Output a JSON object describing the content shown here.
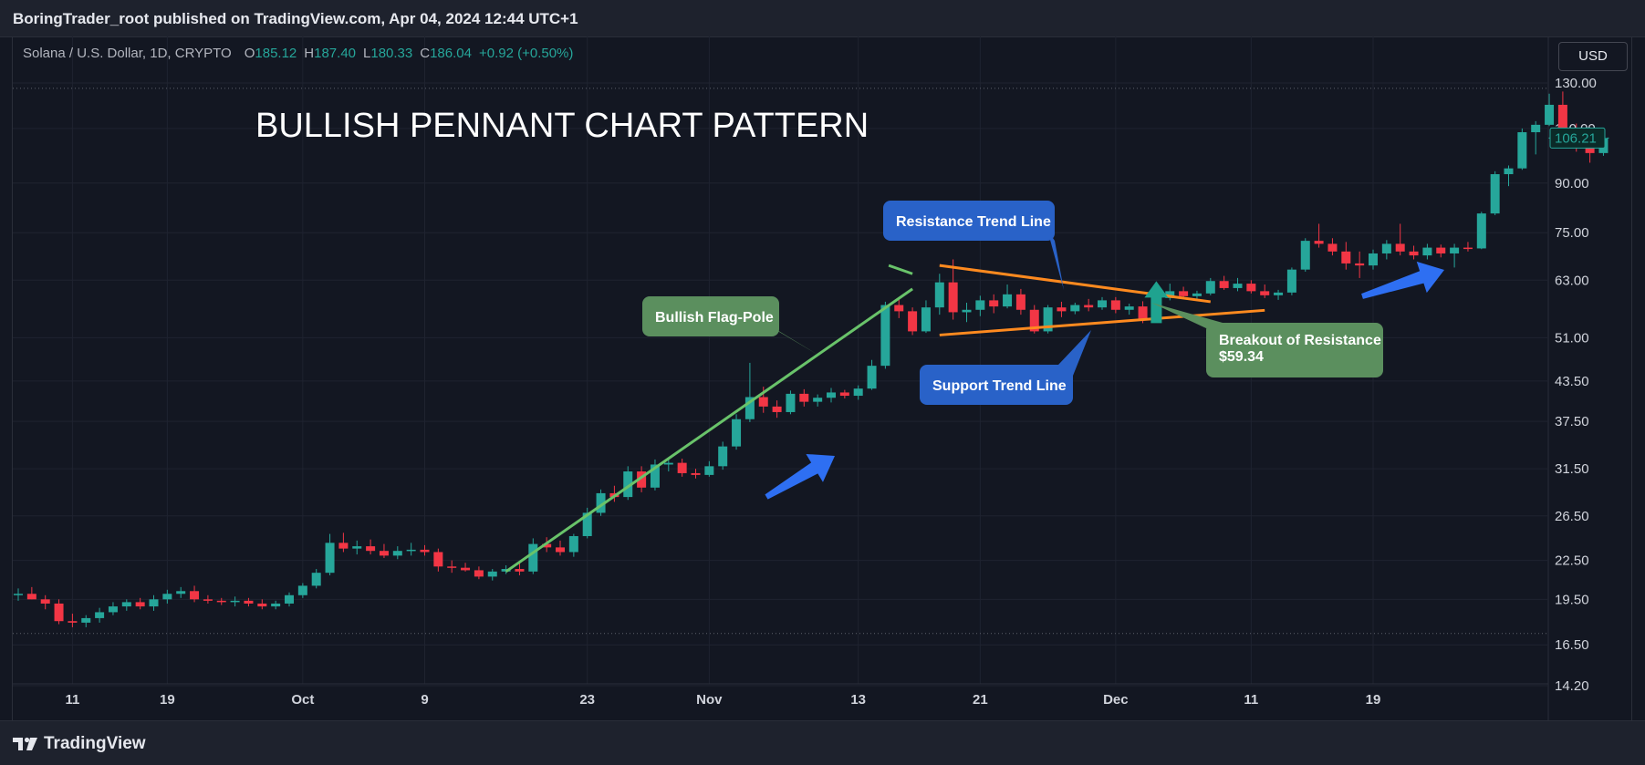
{
  "publish_text": "BoringTrader_root published on TradingView.com, Apr 04, 2024 12:44 UTC+1",
  "brand": "TradingView",
  "legend": {
    "symbol": "Solana / U.S. Dollar, 1D, CRYPTO",
    "o_label": "O",
    "o": "185.12",
    "h_label": "H",
    "h": "187.40",
    "l_label": "L",
    "l": "180.33",
    "c_label": "C",
    "c": "186.04",
    "change": "+0.92 (+0.50%)"
  },
  "currency_button": "USD",
  "colors": {
    "up": "#26a69a",
    "down": "#f23645",
    "background": "#131722"
  },
  "chart_data": {
    "type": "candlestick",
    "title": "BULLISH PENNANT CHART PATTERN",
    "y_scale": "log",
    "ylim": [
      14.2,
      134
    ],
    "y_ticks": [
      "130.00",
      "110.00",
      "90.00",
      "75.00",
      "63.00",
      "51.00",
      "43.50",
      "37.50",
      "31.50",
      "26.50",
      "22.50",
      "19.50",
      "16.50",
      "14.20"
    ],
    "x_ticks": [
      "11",
      "19",
      "Oct",
      "9",
      "23",
      "Nov",
      "13",
      "21",
      "Dec",
      "11",
      "19"
    ],
    "last_price": "106.21",
    "candles": [
      {
        "o": 19.8,
        "h": 20.3,
        "l": 19.4,
        "c": 19.9
      },
      {
        "o": 19.9,
        "h": 20.4,
        "l": 19.5,
        "c": 19.5
      },
      {
        "o": 19.5,
        "h": 19.8,
        "l": 18.8,
        "c": 19.2
      },
      {
        "o": 19.2,
        "h": 19.5,
        "l": 17.8,
        "c": 18.0
      },
      {
        "o": 18.0,
        "h": 18.5,
        "l": 17.6,
        "c": 17.9
      },
      {
        "o": 17.9,
        "h": 18.4,
        "l": 17.6,
        "c": 18.2
      },
      {
        "o": 18.2,
        "h": 18.9,
        "l": 17.9,
        "c": 18.6
      },
      {
        "o": 18.6,
        "h": 19.3,
        "l": 18.4,
        "c": 19.0
      },
      {
        "o": 19.0,
        "h": 19.5,
        "l": 18.7,
        "c": 19.3
      },
      {
        "o": 19.3,
        "h": 19.6,
        "l": 18.8,
        "c": 19.0
      },
      {
        "o": 19.0,
        "h": 19.8,
        "l": 18.7,
        "c": 19.5
      },
      {
        "o": 19.5,
        "h": 20.2,
        "l": 19.2,
        "c": 19.9
      },
      {
        "o": 19.9,
        "h": 20.4,
        "l": 19.6,
        "c": 20.1
      },
      {
        "o": 20.1,
        "h": 20.5,
        "l": 19.3,
        "c": 19.5
      },
      {
        "o": 19.5,
        "h": 19.8,
        "l": 19.2,
        "c": 19.4
      },
      {
        "o": 19.4,
        "h": 19.6,
        "l": 19.1,
        "c": 19.3
      },
      {
        "o": 19.3,
        "h": 19.7,
        "l": 19.0,
        "c": 19.4
      },
      {
        "o": 19.4,
        "h": 19.6,
        "l": 19.0,
        "c": 19.2
      },
      {
        "o": 19.2,
        "h": 19.5,
        "l": 18.8,
        "c": 19.0
      },
      {
        "o": 19.0,
        "h": 19.4,
        "l": 18.8,
        "c": 19.2
      },
      {
        "o": 19.2,
        "h": 20.0,
        "l": 19.0,
        "c": 19.8
      },
      {
        "o": 19.8,
        "h": 20.7,
        "l": 19.6,
        "c": 20.5
      },
      {
        "o": 20.5,
        "h": 21.8,
        "l": 20.3,
        "c": 21.5
      },
      {
        "o": 21.5,
        "h": 24.8,
        "l": 21.3,
        "c": 24.0
      },
      {
        "o": 24.0,
        "h": 24.9,
        "l": 23.2,
        "c": 23.5
      },
      {
        "o": 23.5,
        "h": 24.2,
        "l": 23.0,
        "c": 23.7
      },
      {
        "o": 23.7,
        "h": 24.3,
        "l": 23.0,
        "c": 23.3
      },
      {
        "o": 23.3,
        "h": 23.9,
        "l": 22.7,
        "c": 22.9
      },
      {
        "o": 22.9,
        "h": 23.7,
        "l": 22.6,
        "c": 23.3
      },
      {
        "o": 23.3,
        "h": 24.0,
        "l": 22.9,
        "c": 23.4
      },
      {
        "o": 23.4,
        "h": 23.8,
        "l": 22.9,
        "c": 23.2
      },
      {
        "o": 23.2,
        "h": 23.5,
        "l": 21.6,
        "c": 22.0
      },
      {
        "o": 22.0,
        "h": 22.5,
        "l": 21.5,
        "c": 21.9
      },
      {
        "o": 21.9,
        "h": 22.3,
        "l": 21.6,
        "c": 21.7
      },
      {
        "o": 21.7,
        "h": 22.0,
        "l": 21.0,
        "c": 21.2
      },
      {
        "o": 21.2,
        "h": 21.8,
        "l": 20.9,
        "c": 21.6
      },
      {
        "o": 21.6,
        "h": 22.1,
        "l": 21.4,
        "c": 21.8
      },
      {
        "o": 21.8,
        "h": 22.4,
        "l": 21.3,
        "c": 21.6
      },
      {
        "o": 21.6,
        "h": 24.4,
        "l": 21.4,
        "c": 23.9
      },
      {
        "o": 23.9,
        "h": 24.5,
        "l": 23.2,
        "c": 23.6
      },
      {
        "o": 23.6,
        "h": 24.2,
        "l": 22.9,
        "c": 23.2
      },
      {
        "o": 23.2,
        "h": 24.8,
        "l": 22.8,
        "c": 24.6
      },
      {
        "o": 24.6,
        "h": 27.3,
        "l": 24.4,
        "c": 26.8
      },
      {
        "o": 26.8,
        "h": 29.2,
        "l": 26.5,
        "c": 28.8
      },
      {
        "o": 28.8,
        "h": 29.6,
        "l": 27.9,
        "c": 28.4
      },
      {
        "o": 28.4,
        "h": 31.8,
        "l": 28.1,
        "c": 31.2
      },
      {
        "o": 31.2,
        "h": 31.8,
        "l": 28.9,
        "c": 29.4
      },
      {
        "o": 29.4,
        "h": 32.6,
        "l": 29.1,
        "c": 32.0
      },
      {
        "o": 32.0,
        "h": 32.8,
        "l": 31.2,
        "c": 32.2
      },
      {
        "o": 32.2,
        "h": 32.7,
        "l": 30.6,
        "c": 31.0
      },
      {
        "o": 31.0,
        "h": 31.5,
        "l": 30.4,
        "c": 30.8
      },
      {
        "o": 30.8,
        "h": 32.4,
        "l": 30.6,
        "c": 31.8
      },
      {
        "o": 31.8,
        "h": 34.8,
        "l": 31.4,
        "c": 34.2
      },
      {
        "o": 34.2,
        "h": 38.5,
        "l": 33.8,
        "c": 37.8
      },
      {
        "o": 37.8,
        "h": 46.5,
        "l": 37.4,
        "c": 41.0
      },
      {
        "o": 41.0,
        "h": 42.6,
        "l": 38.7,
        "c": 39.6
      },
      {
        "o": 39.6,
        "h": 40.5,
        "l": 38.0,
        "c": 38.8
      },
      {
        "o": 38.8,
        "h": 42.0,
        "l": 38.5,
        "c": 41.5
      },
      {
        "o": 41.5,
        "h": 42.2,
        "l": 39.6,
        "c": 40.3
      },
      {
        "o": 40.3,
        "h": 41.4,
        "l": 39.6,
        "c": 40.9
      },
      {
        "o": 40.9,
        "h": 42.4,
        "l": 40.2,
        "c": 41.7
      },
      {
        "o": 41.7,
        "h": 42.1,
        "l": 40.8,
        "c": 41.2
      },
      {
        "o": 41.2,
        "h": 42.8,
        "l": 40.6,
        "c": 42.3
      },
      {
        "o": 42.3,
        "h": 47.0,
        "l": 42.1,
        "c": 46.0
      },
      {
        "o": 46.0,
        "h": 58.2,
        "l": 45.5,
        "c": 57.5
      },
      {
        "o": 57.5,
        "h": 59.0,
        "l": 54.8,
        "c": 56.2
      },
      {
        "o": 56.2,
        "h": 57.0,
        "l": 51.5,
        "c": 52.2
      },
      {
        "o": 52.2,
        "h": 58.5,
        "l": 51.9,
        "c": 57.0
      },
      {
        "o": 57.0,
        "h": 64.5,
        "l": 55.5,
        "c": 62.5
      },
      {
        "o": 62.5,
        "h": 68.0,
        "l": 54.5,
        "c": 56.0
      },
      {
        "o": 56.0,
        "h": 58.0,
        "l": 54.0,
        "c": 56.5
      },
      {
        "o": 56.5,
        "h": 59.5,
        "l": 55.2,
        "c": 58.5
      },
      {
        "o": 58.5,
        "h": 59.8,
        "l": 55.8,
        "c": 57.2
      },
      {
        "o": 57.2,
        "h": 62.0,
        "l": 56.8,
        "c": 59.8
      },
      {
        "o": 59.8,
        "h": 61.0,
        "l": 55.5,
        "c": 56.5
      },
      {
        "o": 56.5,
        "h": 57.5,
        "l": 51.8,
        "c": 52.2
      },
      {
        "o": 52.2,
        "h": 57.5,
        "l": 51.8,
        "c": 57.0
      },
      {
        "o": 57.0,
        "h": 58.2,
        "l": 55.0,
        "c": 56.2
      },
      {
        "o": 56.2,
        "h": 58.0,
        "l": 55.6,
        "c": 57.5
      },
      {
        "o": 57.5,
        "h": 58.8,
        "l": 56.2,
        "c": 57.0
      },
      {
        "o": 57.0,
        "h": 59.2,
        "l": 56.5,
        "c": 58.5
      },
      {
        "o": 58.5,
        "h": 59.2,
        "l": 55.8,
        "c": 56.5
      },
      {
        "o": 56.5,
        "h": 57.8,
        "l": 55.5,
        "c": 57.2
      },
      {
        "o": 57.2,
        "h": 58.3,
        "l": 53.8,
        "c": 54.5
      },
      {
        "o": 54.5,
        "h": 59.8,
        "l": 54.0,
        "c": 59.0
      },
      {
        "o": 59.0,
        "h": 62.2,
        "l": 58.5,
        "c": 60.5
      },
      {
        "o": 60.5,
        "h": 61.5,
        "l": 58.8,
        "c": 59.4
      },
      {
        "o": 59.4,
        "h": 60.6,
        "l": 58.8,
        "c": 60.0
      },
      {
        "o": 60.0,
        "h": 63.5,
        "l": 59.6,
        "c": 62.8
      },
      {
        "o": 62.8,
        "h": 64.0,
        "l": 60.8,
        "c": 61.2
      },
      {
        "o": 61.2,
        "h": 63.5,
        "l": 60.5,
        "c": 62.2
      },
      {
        "o": 62.2,
        "h": 63.0,
        "l": 60.0,
        "c": 60.5
      },
      {
        "o": 60.5,
        "h": 62.0,
        "l": 59.0,
        "c": 59.6
      },
      {
        "o": 59.6,
        "h": 60.8,
        "l": 58.6,
        "c": 60.2
      },
      {
        "o": 60.2,
        "h": 66.0,
        "l": 59.6,
        "c": 65.5
      },
      {
        "o": 65.5,
        "h": 73.5,
        "l": 65.0,
        "c": 72.8
      },
      {
        "o": 72.8,
        "h": 77.5,
        "l": 71.0,
        "c": 72.0
      },
      {
        "o": 72.0,
        "h": 73.5,
        "l": 69.0,
        "c": 70.0
      },
      {
        "o": 70.0,
        "h": 72.5,
        "l": 65.5,
        "c": 67.0
      },
      {
        "o": 67.0,
        "h": 70.0,
        "l": 63.5,
        "c": 66.5
      },
      {
        "o": 66.5,
        "h": 70.5,
        "l": 65.5,
        "c": 69.5
      },
      {
        "o": 69.5,
        "h": 73.0,
        "l": 68.0,
        "c": 72.0
      },
      {
        "o": 72.0,
        "h": 77.5,
        "l": 69.0,
        "c": 70.0
      },
      {
        "o": 70.0,
        "h": 71.5,
        "l": 68.0,
        "c": 69.0
      },
      {
        "o": 69.0,
        "h": 72.0,
        "l": 68.0,
        "c": 71.0
      },
      {
        "o": 71.0,
        "h": 71.8,
        "l": 68.5,
        "c": 69.5
      },
      {
        "o": 69.5,
        "h": 72.0,
        "l": 66.0,
        "c": 71.0
      },
      {
        "o": 71.0,
        "h": 72.5,
        "l": 70.0,
        "c": 70.8
      },
      {
        "o": 70.8,
        "h": 81.0,
        "l": 70.6,
        "c": 80.5
      },
      {
        "o": 80.5,
        "h": 94.0,
        "l": 80.0,
        "c": 93.0
      },
      {
        "o": 93.0,
        "h": 96.0,
        "l": 89.0,
        "c": 95.0
      },
      {
        "o": 95.0,
        "h": 110.0,
        "l": 94.5,
        "c": 108.5
      },
      {
        "o": 108.5,
        "h": 113.0,
        "l": 100.0,
        "c": 111.5
      },
      {
        "o": 111.5,
        "h": 125.0,
        "l": 111.0,
        "c": 120.0
      },
      {
        "o": 120.0,
        "h": 126.0,
        "l": 109.0,
        "c": 110.0
      },
      {
        "o": 110.0,
        "h": 112.0,
        "l": 101.0,
        "c": 103.5
      },
      {
        "o": 103.5,
        "h": 108.0,
        "l": 97.0,
        "c": 100.5
      },
      {
        "o": 100.5,
        "h": 106.5,
        "l": 99.5,
        "c": 106.21
      }
    ],
    "annotations": [
      {
        "type": "callout",
        "text": "Bullish Flag-Pole",
        "fill": "#5b8f5e"
      },
      {
        "type": "callout",
        "text": "Resistance Trend Line",
        "fill": "#2962c8"
      },
      {
        "type": "callout",
        "text": "Support Trend Line",
        "fill": "#2962c8"
      },
      {
        "type": "callout",
        "text": "Breakout of Resistance",
        "text2": "$59.34",
        "fill": "#5b8f5e"
      }
    ]
  }
}
